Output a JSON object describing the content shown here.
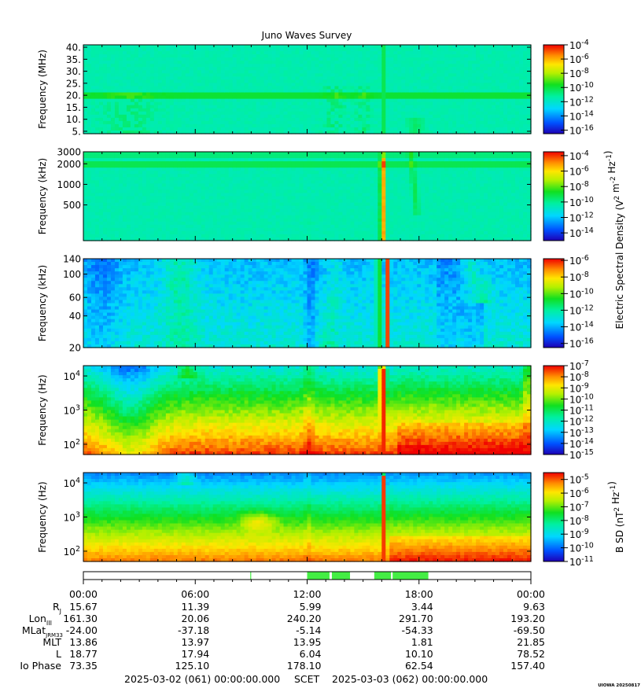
{
  "chart_data": {
    "type": "heatmap",
    "title": "Juno Waves Survey",
    "colormap": "rainbow (blue-cyan-green-yellow-red)",
    "shared_colorbar_label": "Electric Spectral Density (V^2 m^-2 Hz^-1)",
    "panels": [
      {
        "id": "hf-mhz",
        "ylabel": "Frequency (MHz)",
        "yscale": "linear",
        "ylim": [
          4,
          41
        ],
        "yticks": [
          "5.",
          "10.",
          "15.",
          "20.",
          "25.",
          "30.",
          "35.",
          "40."
        ],
        "colorbar_ticks": [
          "-4",
          "-6",
          "-8",
          "-10",
          "-12",
          "-14",
          "-16"
        ],
        "colorbar_range_log10": [
          -16.5,
          -4
        ]
      },
      {
        "id": "hf-khz",
        "ylabel": "Frequency (kHz)",
        "yscale": "log",
        "ylim": [
          150,
          3000
        ],
        "yticks": [
          "3000",
          "2000",
          "1000",
          "500"
        ],
        "colorbar_ticks": [
          "-4",
          "-6",
          "-8",
          "-10",
          "-12",
          "-14"
        ],
        "colorbar_range_log10": [
          -15,
          -3.5
        ]
      },
      {
        "id": "lf-khz",
        "ylabel": "Frequency (kHz)",
        "yscale": "log",
        "ylim": [
          20,
          140
        ],
        "yticks": [
          "140",
          "100",
          "60",
          "40",
          "20"
        ],
        "colorbar_ticks": [
          "-6",
          "-8",
          "-10",
          "-12",
          "-14",
          "-16"
        ],
        "colorbar_range_log10": [
          -16.5,
          -5.8
        ]
      },
      {
        "id": "lf-hz",
        "ylabel": "Frequency (Hz)",
        "yscale": "log",
        "ylim": [
          50,
          20000
        ],
        "yticks": [
          "10^4",
          "10^3",
          "10^2"
        ],
        "colorbar_ticks": [
          "-7",
          "-8",
          "-9",
          "-10",
          "-11",
          "-12",
          "-13",
          "-14",
          "-15"
        ],
        "colorbar_range_log10": [
          -15,
          -7
        ]
      },
      {
        "id": "mag-hz",
        "ylabel": "Frequency (Hz)",
        "yscale": "log",
        "ylim": [
          50,
          20000
        ],
        "yticks": [
          "10^4",
          "10^3",
          "10^2"
        ],
        "colorbar_label": "B SD (nT^2 Hz^-1)",
        "colorbar_ticks": [
          "-5",
          "-6",
          "-7",
          "-8",
          "-9",
          "-10",
          "-11"
        ],
        "colorbar_range_log10": [
          -11,
          -4.5
        ]
      }
    ],
    "x_axis": {
      "ticks": [
        "00:00",
        "06:00",
        "12:00",
        "18:00",
        "00:00"
      ],
      "range_hours": [
        0,
        24
      ]
    },
    "ephemeris": {
      "rows": [
        {
          "label": "Rj",
          "values": [
            "15.67",
            "11.39",
            "5.99",
            "3.44",
            "9.63"
          ]
        },
        {
          "label": "LonIII",
          "values": [
            "161.30",
            "20.06",
            "240.20",
            "291.70",
            "193.20"
          ]
        },
        {
          "label": "MLatJRM33",
          "values": [
            "-24.00",
            "-37.18",
            "-5.14",
            "-54.33",
            "-69.50"
          ]
        },
        {
          "label": "MLT",
          "values": [
            "13.86",
            "13.97",
            "13.95",
            "1.81",
            "21.85"
          ]
        },
        {
          "label": "L",
          "values": [
            "18.77",
            "17.94",
            "6.04",
            "10.10",
            "78.52"
          ]
        },
        {
          "label": "Io Phase",
          "values": [
            "73.35",
            "125.10",
            "178.10",
            "62.54",
            "157.40"
          ]
        }
      ]
    },
    "mode_bar_segments_hours": [
      [
        8.95,
        9.0
      ],
      [
        12.0,
        14.3
      ],
      [
        15.6,
        18.5
      ]
    ],
    "footer": {
      "start": "2025-03-02 (061) 00:00:00.000",
      "scet": "SCET",
      "end": "2025-03-03 (062) 00:00:00.000",
      "stamp": "UIOWA 20250817"
    }
  }
}
